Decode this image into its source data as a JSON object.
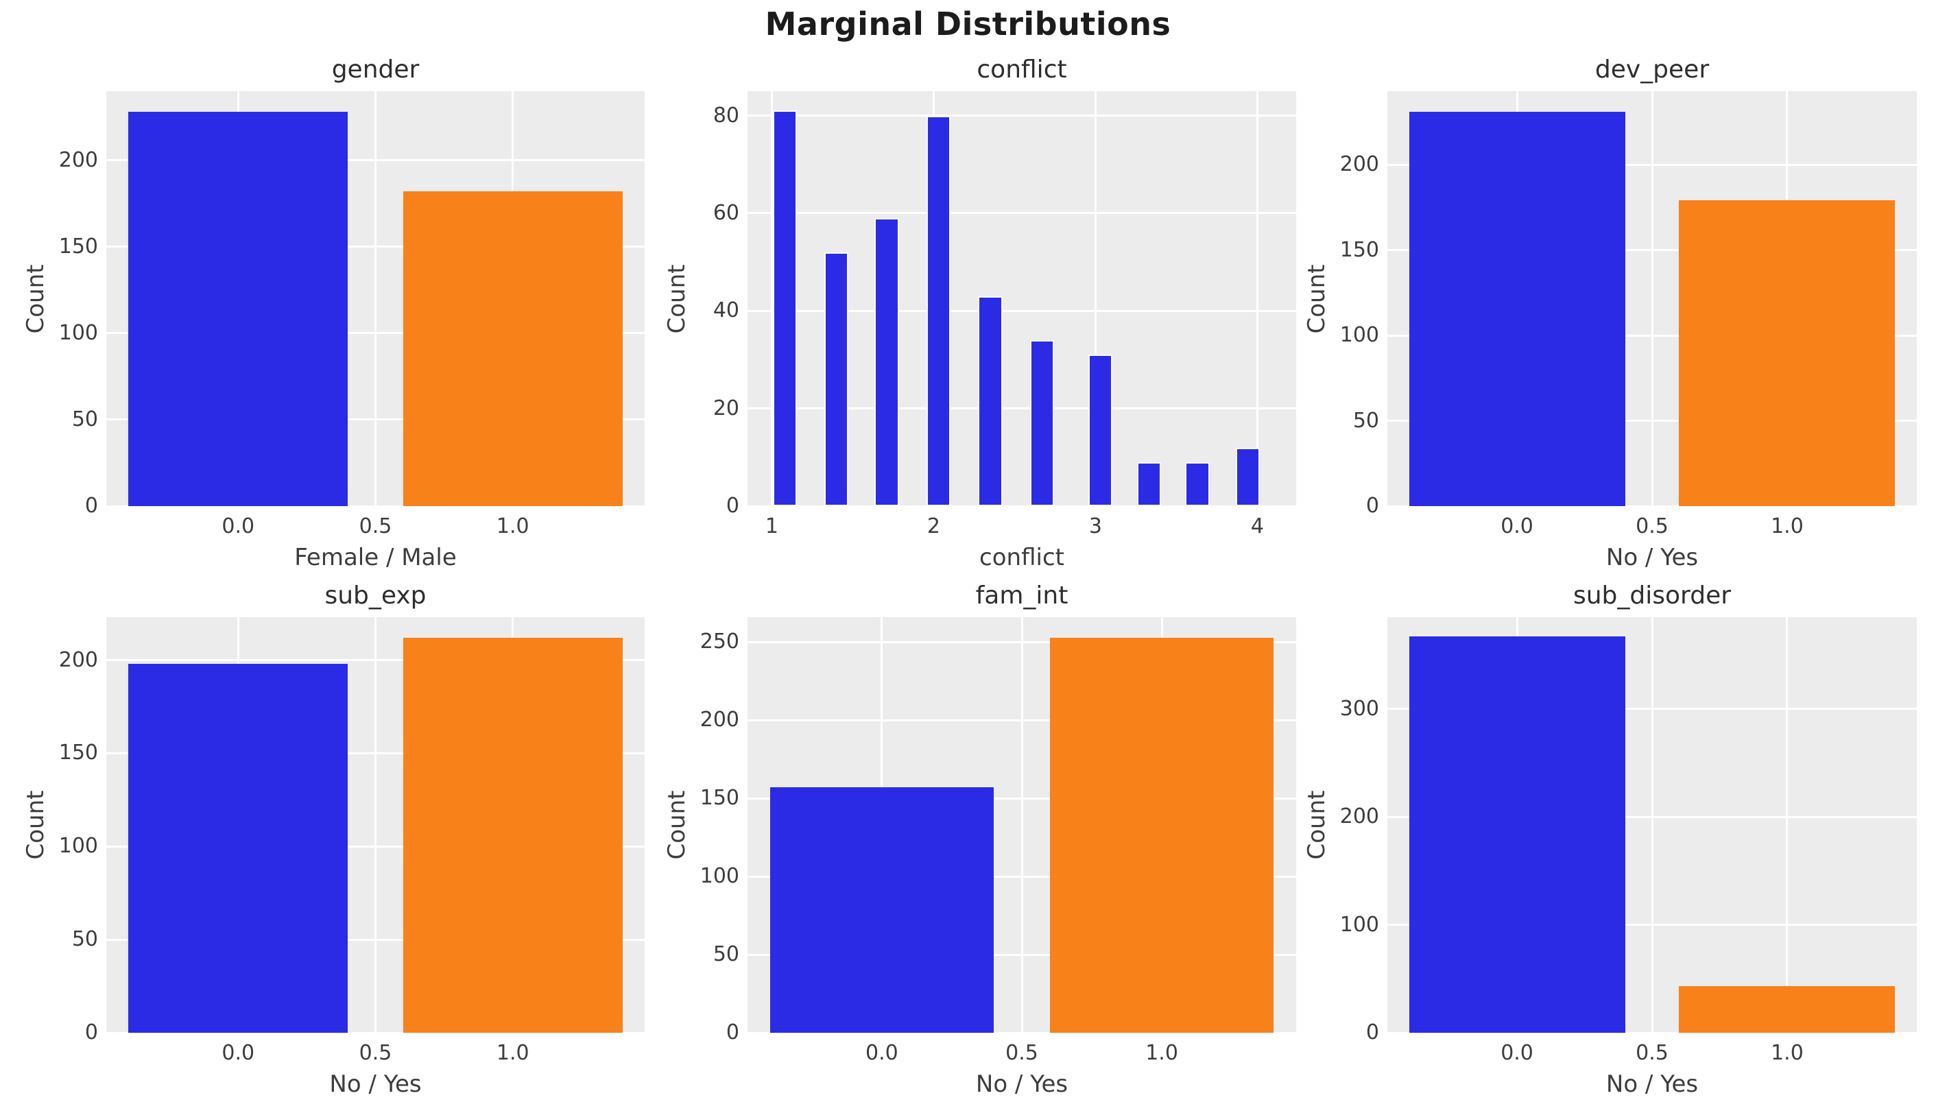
{
  "title": "Marginal Distributions",
  "colors": {
    "blue": "#2b2be6",
    "orange": "#f8811a",
    "axes_bg": "#ececec",
    "grid": "#ffffff",
    "text": "#3d3d3d",
    "title_text": "#1c1c1c"
  },
  "chart_data": [
    {
      "type": "bar",
      "title": "gender",
      "xlabel": "Female / Male",
      "ylabel": "Count",
      "categories": [
        "0.0",
        "1.0"
      ],
      "bars": [
        {
          "x": 0,
          "value": 228,
          "color": "blue"
        },
        {
          "x": 1,
          "value": 182,
          "color": "orange"
        }
      ],
      "bar_width": 0.8,
      "edges": false,
      "xlim": [
        -0.48,
        1.48
      ],
      "ylim": [
        0,
        240
      ],
      "xticks": [
        0,
        0.5,
        1
      ],
      "xtick_labels": [
        "0.0",
        "0.5",
        "1.0"
      ],
      "yticks": [
        0,
        50,
        100,
        150,
        200
      ],
      "grid": true,
      "legend": "none"
    },
    {
      "type": "histogram",
      "title": "conflict",
      "xlabel": "conflict",
      "ylabel": "Count",
      "bars": [
        {
          "x": 1.08,
          "value": 81,
          "color": "blue"
        },
        {
          "x": 1.4,
          "value": 52,
          "color": "blue"
        },
        {
          "x": 1.71,
          "value": 59,
          "color": "blue"
        },
        {
          "x": 2.03,
          "value": 80,
          "color": "blue"
        },
        {
          "x": 2.35,
          "value": 43,
          "color": "blue"
        },
        {
          "x": 2.67,
          "value": 34,
          "color": "blue"
        },
        {
          "x": 3.03,
          "value": 31,
          "color": "blue"
        },
        {
          "x": 3.33,
          "value": 9,
          "color": "blue"
        },
        {
          "x": 3.63,
          "value": 9,
          "color": "blue"
        },
        {
          "x": 3.94,
          "value": 12,
          "color": "blue"
        }
      ],
      "bar_width": 0.15,
      "edges": true,
      "xlim": [
        0.85,
        4.24
      ],
      "ylim": [
        0,
        85
      ],
      "xticks": [
        1,
        2,
        3,
        4
      ],
      "xtick_labels": [
        "1",
        "2",
        "3",
        "4"
      ],
      "yticks": [
        0,
        20,
        40,
        60,
        80
      ],
      "grid": true,
      "legend": "none"
    },
    {
      "type": "bar",
      "title": "dev_peer",
      "xlabel": "No / Yes",
      "ylabel": "Count",
      "categories": [
        "0.0",
        "1.0"
      ],
      "bars": [
        {
          "x": 0,
          "value": 231,
          "color": "blue"
        },
        {
          "x": 1,
          "value": 179,
          "color": "orange"
        }
      ],
      "bar_width": 0.8,
      "edges": false,
      "xlim": [
        -0.48,
        1.48
      ],
      "ylim": [
        0,
        243
      ],
      "xticks": [
        0,
        0.5,
        1
      ],
      "xtick_labels": [
        "0.0",
        "0.5",
        "1.0"
      ],
      "yticks": [
        0,
        50,
        100,
        150,
        200
      ],
      "grid": true,
      "legend": "none"
    },
    {
      "type": "bar",
      "title": "sub_exp",
      "xlabel": "No / Yes",
      "ylabel": "Count",
      "categories": [
        "0.0",
        "1.0"
      ],
      "bars": [
        {
          "x": 0,
          "value": 198,
          "color": "blue"
        },
        {
          "x": 1,
          "value": 212,
          "color": "orange"
        }
      ],
      "bar_width": 0.8,
      "edges": false,
      "xlim": [
        -0.48,
        1.48
      ],
      "ylim": [
        0,
        223
      ],
      "xticks": [
        0,
        0.5,
        1
      ],
      "xtick_labels": [
        "0.0",
        "0.5",
        "1.0"
      ],
      "yticks": [
        0,
        50,
        100,
        150,
        200
      ],
      "grid": true,
      "legend": "none"
    },
    {
      "type": "bar",
      "title": "fam_int",
      "xlabel": "No / Yes",
      "ylabel": "Count",
      "categories": [
        "0.0",
        "1.0"
      ],
      "bars": [
        {
          "x": 0,
          "value": 157,
          "color": "blue"
        },
        {
          "x": 1,
          "value": 253,
          "color": "orange"
        }
      ],
      "bar_width": 0.8,
      "edges": false,
      "xlim": [
        -0.48,
        1.48
      ],
      "ylim": [
        0,
        266
      ],
      "xticks": [
        0,
        0.5,
        1
      ],
      "xtick_labels": [
        "0.0",
        "0.5",
        "1.0"
      ],
      "yticks": [
        0,
        50,
        100,
        150,
        200,
        250
      ],
      "grid": true,
      "legend": "none"
    },
    {
      "type": "bar",
      "title": "sub_disorder",
      "xlabel": "No / Yes",
      "ylabel": "Count",
      "categories": [
        "0.0",
        "1.0"
      ],
      "bars": [
        {
          "x": 0,
          "value": 367,
          "color": "blue"
        },
        {
          "x": 1,
          "value": 43,
          "color": "orange"
        }
      ],
      "bar_width": 0.8,
      "edges": false,
      "xlim": [
        -0.48,
        1.48
      ],
      "ylim": [
        0,
        385
      ],
      "xticks": [
        0,
        0.5,
        1
      ],
      "xtick_labels": [
        "0.0",
        "0.5",
        "1.0"
      ],
      "yticks": [
        0,
        100,
        200,
        300
      ],
      "grid": true,
      "legend": "none"
    }
  ]
}
